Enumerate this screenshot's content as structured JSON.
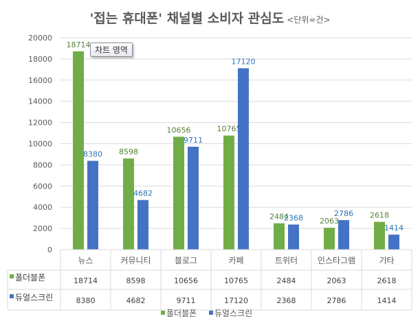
{
  "title": "'접는 휴대폰' 채널별 소비자 관심도",
  "unit": "<단위=건>",
  "tooltip": "차트 영역",
  "colors": {
    "series1": "#70ad47",
    "series2": "#4472c4",
    "label1": "#548235",
    "label2": "#2e75b6"
  },
  "chart_data": {
    "type": "bar",
    "title": "'접는 휴대폰' 채널별 소비자 관심도 <단위=건>",
    "categories": [
      "뉴스",
      "커뮤니티",
      "블로그",
      "카페",
      "트위터",
      "인스타그램",
      "기타"
    ],
    "series": [
      {
        "name": "폴더블폰",
        "values": [
          18714,
          8598,
          10656,
          10765,
          2484,
          2063,
          2618
        ]
      },
      {
        "name": "듀얼스크린",
        "values": [
          8380,
          4682,
          9711,
          17120,
          2368,
          2786,
          1414
        ]
      }
    ],
    "ylim": [
      0,
      20000
    ],
    "yticks": [
      0,
      2000,
      4000,
      6000,
      8000,
      10000,
      12000,
      14000,
      16000,
      18000,
      20000
    ],
    "grid": true,
    "legend": "bottom",
    "data_table": true
  }
}
